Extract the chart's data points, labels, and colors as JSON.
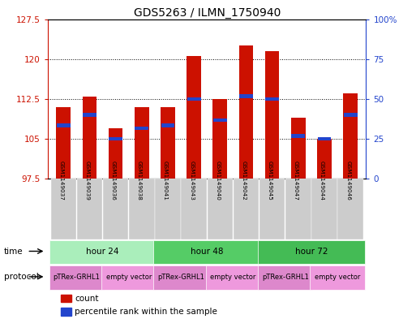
{
  "title": "GDS5263 / ILMN_1750940",
  "samples": [
    "GSM1149037",
    "GSM1149039",
    "GSM1149036",
    "GSM1149038",
    "GSM1149041",
    "GSM1149043",
    "GSM1149040",
    "GSM1149042",
    "GSM1149045",
    "GSM1149047",
    "GSM1149044",
    "GSM1149046"
  ],
  "bar_heights": [
    111.0,
    113.0,
    107.0,
    111.0,
    111.0,
    120.5,
    112.5,
    122.5,
    121.5,
    109.0,
    105.0,
    113.5
  ],
  "blue_positions": [
    107.5,
    109.5,
    105.0,
    107.0,
    107.5,
    112.5,
    108.5,
    113.0,
    112.5,
    105.5,
    105.0,
    109.5
  ],
  "y_min": 97.5,
  "y_max": 127.5,
  "y_ticks_left": [
    97.5,
    105,
    112.5,
    120,
    127.5
  ],
  "y_ticks_right_values": [
    0,
    25,
    50,
    75,
    100
  ],
  "y_ticks_right_positions": [
    97.5,
    105,
    112.5,
    120,
    127.5
  ],
  "bar_color": "#cc1100",
  "blue_color": "#2244cc",
  "title_fontsize": 10,
  "time_groups": [
    {
      "label": "hour 24",
      "start": 0,
      "end": 4,
      "color": "#aaeebb"
    },
    {
      "label": "hour 48",
      "start": 4,
      "end": 8,
      "color": "#55cc66"
    },
    {
      "label": "hour 72",
      "start": 8,
      "end": 12,
      "color": "#44bb55"
    }
  ],
  "protocol_groups": [
    {
      "label": "pTRex-GRHL1",
      "start": 0,
      "end": 2,
      "color": "#dd88cc"
    },
    {
      "label": "empty vector",
      "start": 2,
      "end": 4,
      "color": "#ee99dd"
    },
    {
      "label": "pTRex-GRHL1",
      "start": 4,
      "end": 6,
      "color": "#dd88cc"
    },
    {
      "label": "empty vector",
      "start": 6,
      "end": 8,
      "color": "#ee99dd"
    },
    {
      "label": "pTRex-GRHL1",
      "start": 8,
      "end": 10,
      "color": "#dd88cc"
    },
    {
      "label": "empty vector",
      "start": 10,
      "end": 12,
      "color": "#ee99dd"
    }
  ],
  "time_label": "time",
  "protocol_label": "protocol",
  "legend_count_color": "#cc1100",
  "legend_percentile_color": "#2244cc",
  "bg_color": "#ffffff",
  "sample_bg_color": "#cccccc"
}
